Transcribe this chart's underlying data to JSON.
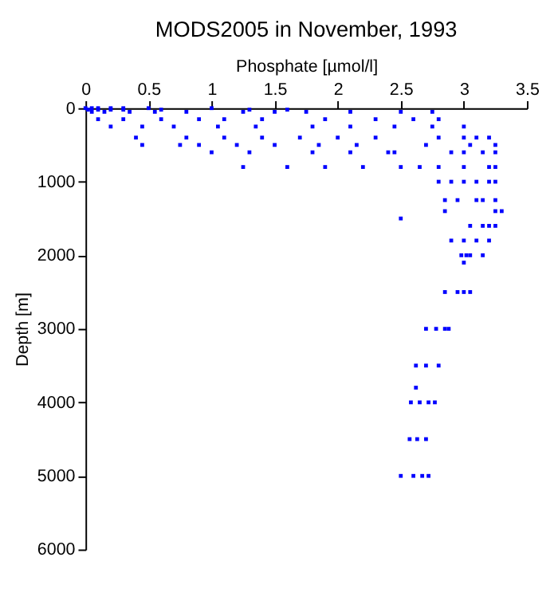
{
  "chart_data": {
    "type": "scatter",
    "title": "MODS2005 in November, 1993",
    "xlabel": "Phosphate [µmol/l]",
    "ylabel": "Depth [m]",
    "xlim": [
      0,
      3.5
    ],
    "xticks": [
      0,
      0.5,
      1,
      1.5,
      2,
      2.5,
      3,
      3.5
    ],
    "ylim": [
      6000,
      0
    ],
    "yticks": [
      0,
      1000,
      2000,
      3000,
      4000,
      5000,
      6000
    ],
    "grid": false,
    "marker": "square",
    "series": [
      {
        "color": "#0000ff",
        "x": [
          0.0,
          0.05,
          0.1,
          0.2,
          0.3,
          0.5,
          1.0,
          0.02,
          0.1,
          0.2,
          0.3,
          0.6,
          1.3,
          1.6,
          0.05,
          0.15,
          0.35,
          0.55,
          0.8,
          1.25,
          1.5,
          1.75,
          2.1,
          2.5,
          2.75,
          0.1,
          0.3,
          0.6,
          0.9,
          1.1,
          1.4,
          1.9,
          2.3,
          2.6,
          2.8,
          0.2,
          0.45,
          0.7,
          1.05,
          1.35,
          1.8,
          2.1,
          2.45,
          2.75,
          3.0,
          0.4,
          0.8,
          1.1,
          1.4,
          1.7,
          2.0,
          2.3,
          2.8,
          3.0,
          3.1,
          3.2,
          0.45,
          0.75,
          0.9,
          1.2,
          1.5,
          1.85,
          2.15,
          2.7,
          3.05,
          3.25,
          1.0,
          1.3,
          1.8,
          2.1,
          2.4,
          2.45,
          2.9,
          3.0,
          3.15,
          3.25,
          1.25,
          1.6,
          1.9,
          2.2,
          2.5,
          2.65,
          2.8,
          3.0,
          3.2,
          3.25,
          2.8,
          2.9,
          3.0,
          3.1,
          3.2,
          3.25,
          2.85,
          2.95,
          3.1,
          3.15,
          3.25,
          2.85,
          3.25,
          3.3,
          2.5,
          3.05,
          3.15,
          3.2,
          3.25,
          2.9,
          3.0,
          3.1,
          3.2,
          2.98,
          3.02,
          3.05,
          3.15,
          3.0,
          2.85,
          2.95,
          3.0,
          3.05,
          2.7,
          2.78,
          2.85,
          2.88,
          2.62,
          2.7,
          2.8,
          2.62,
          2.58,
          2.65,
          2.72,
          2.77,
          2.57,
          2.63,
          2.7,
          2.5,
          2.6,
          2.67,
          2.72
        ],
        "values": [
          0,
          0,
          0,
          0,
          0,
          0,
          0,
          20,
          20,
          20,
          20,
          20,
          20,
          20,
          50,
          50,
          50,
          50,
          50,
          50,
          50,
          50,
          50,
          50,
          50,
          150,
          150,
          150,
          150,
          150,
          150,
          150,
          150,
          150,
          150,
          250,
          250,
          250,
          250,
          250,
          250,
          250,
          250,
          250,
          250,
          400,
          400,
          400,
          400,
          400,
          400,
          400,
          400,
          400,
          400,
          400,
          500,
          500,
          500,
          500,
          500,
          500,
          500,
          500,
          500,
          500,
          600,
          600,
          600,
          600,
          600,
          600,
          600,
          600,
          600,
          600,
          800,
          800,
          800,
          800,
          800,
          800,
          800,
          800,
          800,
          800,
          1000,
          1000,
          1000,
          1000,
          1000,
          1000,
          1250,
          1250,
          1250,
          1250,
          1250,
          1400,
          1400,
          1400,
          1500,
          1600,
          1600,
          1600,
          1600,
          1800,
          1800,
          1800,
          1800,
          2000,
          2000,
          2000,
          2000,
          2100,
          2500,
          2500,
          2500,
          2500,
          3000,
          3000,
          3000,
          3000,
          3500,
          3500,
          3500,
          3800,
          4000,
          4000,
          4000,
          4000,
          4500,
          4500,
          4500,
          5000,
          5000,
          5000,
          5000
        ]
      }
    ]
  }
}
